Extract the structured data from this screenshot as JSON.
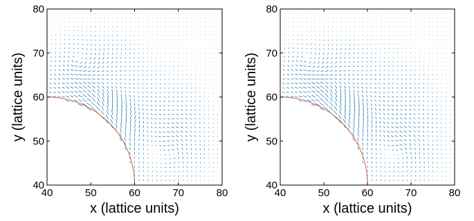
{
  "chart_data": [
    {
      "type": "quiver",
      "xlabel": "x (lattice units)",
      "ylabel": "y (lattice units)",
      "xlim": [
        40,
        80
      ],
      "ylim": [
        40,
        80
      ],
      "xticks": [
        40,
        50,
        60,
        70,
        80
      ],
      "yticks": [
        40,
        50,
        60,
        70,
        80
      ],
      "grid": false,
      "arrow_color": "#1f77b4",
      "boundary": {
        "shape": "circular-arc",
        "center": [
          40,
          40
        ],
        "radius": 20,
        "color": "#d9603b"
      },
      "field_spacing": 1
    },
    {
      "type": "quiver",
      "xlabel": "x (lattice units)",
      "ylabel": "y (lattice units)",
      "xlim": [
        40,
        80
      ],
      "ylim": [
        40,
        80
      ],
      "xticks": [
        40,
        50,
        60,
        70,
        80
      ],
      "yticks": [
        40,
        50,
        60,
        70,
        80
      ],
      "grid": false,
      "arrow_color": "#1f77b4",
      "boundary": {
        "shape": "circular-arc",
        "center": [
          40,
          40
        ],
        "radius": 20,
        "color": "#d9603b"
      },
      "field_spacing": 1
    }
  ]
}
